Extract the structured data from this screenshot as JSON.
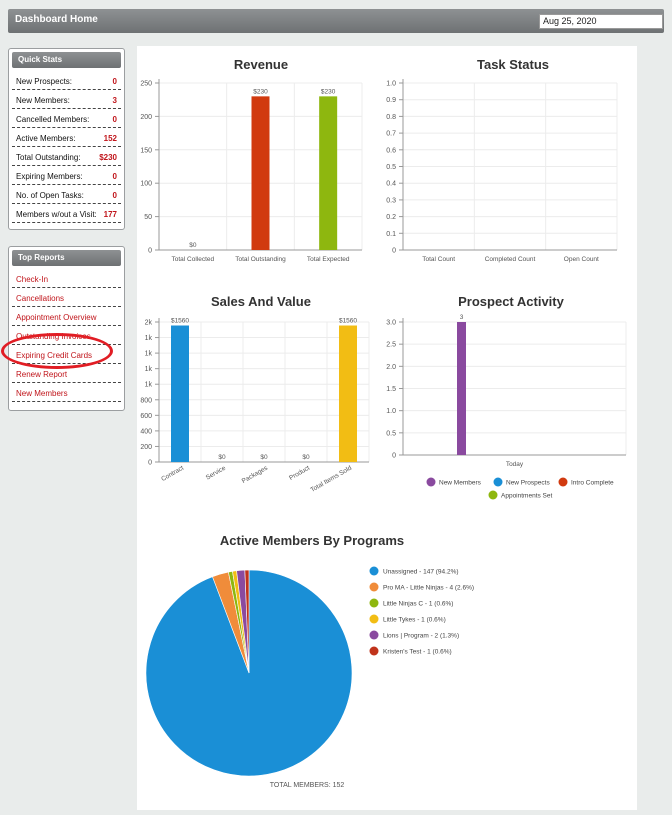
{
  "header": {
    "title": "Dashboard Home",
    "date": "Aug 25, 2020"
  },
  "quick_stats": {
    "title": "Quick Stats",
    "rows": [
      {
        "label": "New Prospects:",
        "value": "0"
      },
      {
        "label": "New Members:",
        "value": "3"
      },
      {
        "label": "Cancelled Members:",
        "value": "0"
      },
      {
        "label": "Active Members:",
        "value": "152"
      },
      {
        "label": "Total Outstanding:",
        "value": "$230"
      },
      {
        "label": "Expiring Members:",
        "value": "0"
      },
      {
        "label": "No. of Open Tasks:",
        "value": "0"
      },
      {
        "label": "Members w/out a Visit:",
        "value": "177"
      }
    ]
  },
  "top_reports": {
    "title": "Top Reports",
    "items": [
      "Check-In",
      "Cancellations",
      "Appointment Overview",
      "Outstanding Invoices",
      "Expiring Credit Cards",
      "Renew Report",
      "New Members"
    ]
  },
  "charts": {
    "revenue": {
      "title": "Revenue",
      "chart_data": {
        "type": "bar",
        "categories": [
          "Total Collected",
          "Total Outstanding",
          "Total Expected"
        ],
        "values": [
          0,
          230,
          230
        ],
        "labels": [
          "$0",
          "$230",
          "$230"
        ],
        "colors": [
          "#888888",
          "#d13a0f",
          "#8eb70f"
        ],
        "yticks": [
          "0",
          "50",
          "100",
          "150",
          "200",
          "250"
        ],
        "ylim": [
          0,
          250
        ]
      }
    },
    "task_status": {
      "title": "Task Status",
      "chart_data": {
        "type": "bar",
        "categories": [
          "Total Count",
          "Completed Count",
          "Open Count"
        ],
        "values": [
          0,
          0,
          0
        ],
        "yticks": [
          "0",
          "0.1",
          "0.2",
          "0.3",
          "0.4",
          "0.5",
          "0.6",
          "0.7",
          "0.8",
          "0.9",
          "1.0"
        ],
        "ylim": [
          0,
          1
        ]
      }
    },
    "sales": {
      "title": "Sales And Value",
      "chart_data": {
        "type": "bar",
        "categories": [
          "Contract",
          "Service",
          "Packages",
          "Product",
          "Total Items Sold"
        ],
        "values": [
          1560,
          0,
          0,
          0,
          1560
        ],
        "labels": [
          "$1560",
          "$0",
          "$0",
          "$0",
          "$1560"
        ],
        "colors": [
          "#1a8fd6",
          "#888888",
          "#888888",
          "#888888",
          "#f2bd14"
        ],
        "yticks": [
          "0",
          "200",
          "400",
          "600",
          "800",
          "1k",
          "1k",
          "1k",
          "1k",
          "2k"
        ],
        "ylim": [
          0,
          1600
        ]
      }
    },
    "prospect": {
      "title": "Prospect Activity",
      "chart_data": {
        "type": "bar",
        "categories": [
          "Today"
        ],
        "series": [
          {
            "name": "New Members",
            "values": [
              3
            ],
            "color": "#8a4a9f"
          },
          {
            "name": "New Prospects",
            "values": [
              0
            ],
            "color": "#1a8fd6"
          },
          {
            "name": "Intro Complete",
            "values": [
              0
            ],
            "color": "#d13a0f"
          },
          {
            "name": "Appointments Set",
            "values": [
              0
            ],
            "color": "#8eb70f"
          }
        ],
        "labels": [
          "3"
        ],
        "yticks": [
          "0",
          "0.5",
          "1.0",
          "1.5",
          "2.0",
          "2.5",
          "3.0"
        ],
        "ylim": [
          0,
          3
        ]
      }
    },
    "programs": {
      "title": "Active Members By Programs",
      "total": "TOTAL MEMBERS: 152",
      "chart_data": {
        "type": "pie",
        "slices": [
          {
            "label": "Unassigned - 147 (94.2%)",
            "value": 147,
            "color": "#1a8fd6"
          },
          {
            "label": "Pro MA - Little Ninjas - 4 (2.6%)",
            "value": 4,
            "color": "#f08c3a"
          },
          {
            "label": "Little Ninjas C - 1 (0.6%)",
            "value": 1,
            "color": "#8eb70f"
          },
          {
            "label": "Little Tykes - 1 (0.6%)",
            "value": 1,
            "color": "#f2bd14"
          },
          {
            "label": "Lions | Program - 2 (1.3%)",
            "value": 2,
            "color": "#8a4a9f"
          },
          {
            "label": "Kristen's Test - 1 (0.6%)",
            "value": 1,
            "color": "#c0331b"
          }
        ]
      }
    }
  }
}
